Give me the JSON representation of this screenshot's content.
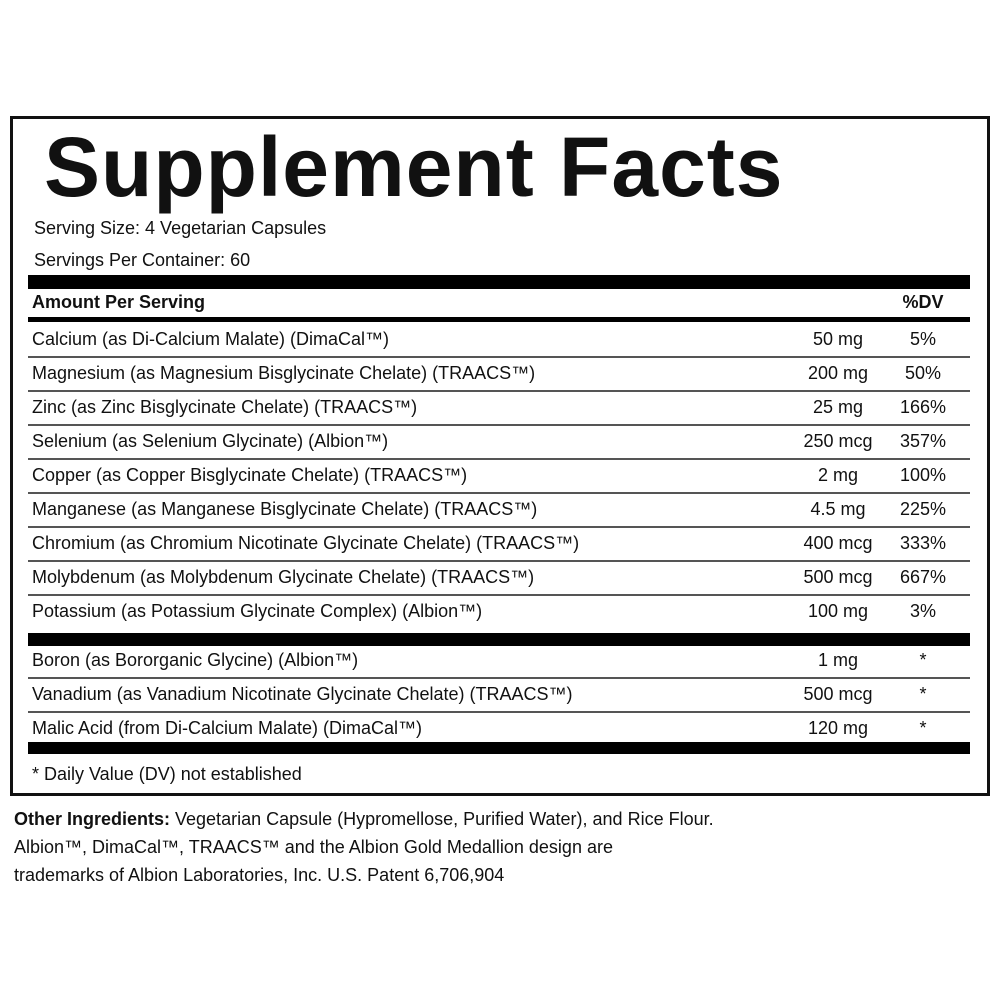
{
  "title": "Supplement Facts",
  "serving_size": "Serving Size:  4 Vegetarian Capsules",
  "servings_per_container": "Servings Per Container: 60",
  "header": {
    "amount": "Amount Per Serving",
    "dv": "%DV"
  },
  "rows": [
    {
      "name": "Calcium (as Di-Calcium Malate) (DimaCal™)",
      "amount": "50 mg",
      "dv": "5%"
    },
    {
      "name": "Magnesium (as Magnesium Bisglycinate Chelate) (TRAACS™)",
      "amount": "200 mg",
      "dv": "50%"
    },
    {
      "name": "Zinc (as Zinc Bisglycinate Chelate) (TRAACS™)",
      "amount": "25 mg",
      "dv": "166%"
    },
    {
      "name": "Selenium (as Selenium Glycinate) (Albion™)",
      "amount": "250 mcg",
      "dv": "357%"
    },
    {
      "name": "Copper (as Copper Bisglycinate Chelate) (TRAACS™)",
      "amount": "2 mg",
      "dv": "100%"
    },
    {
      "name": "Manganese (as Manganese Bisglycinate Chelate) (TRAACS™)",
      "amount": "4.5 mg",
      "dv": "225%"
    },
    {
      "name": "Chromium (as Chromium Nicotinate Glycinate Chelate) (TRAACS™)",
      "amount": "400 mcg",
      "dv": "333%"
    },
    {
      "name": "Molybdenum (as Molybdenum Glycinate Chelate) (TRAACS™)",
      "amount": "500 mcg",
      "dv": "667%"
    },
    {
      "name": "Potassium (as Potassium Glycinate Complex) (Albion™)",
      "amount": "100 mg",
      "dv": "3%"
    }
  ],
  "rows2": [
    {
      "name": "Boron (as Bororganic Glycine) (Albion™)",
      "amount": "1 mg",
      "dv": "*"
    },
    {
      "name": "Vanadium (as Vanadium Nicotinate Glycinate Chelate) (TRAACS™)",
      "amount": "500 mcg",
      "dv": "*"
    },
    {
      "name": "Malic Acid (from Di-Calcium Malate) (DimaCal™)",
      "amount": "120 mg",
      "dv": "*"
    }
  ],
  "footnote": "* Daily Value (DV) not established",
  "other_label": "Other Ingredients:",
  "other_text": " Vegetarian Capsule (Hypromellose, Purified Water), and Rice Flour.",
  "trademark_line1": "Albion™, DimaCal™, TRAACS™ and the Albion Gold Medallion design are",
  "trademark_line2": "trademarks of Albion Laboratories, Inc. U.S. Patent 6,706,904"
}
